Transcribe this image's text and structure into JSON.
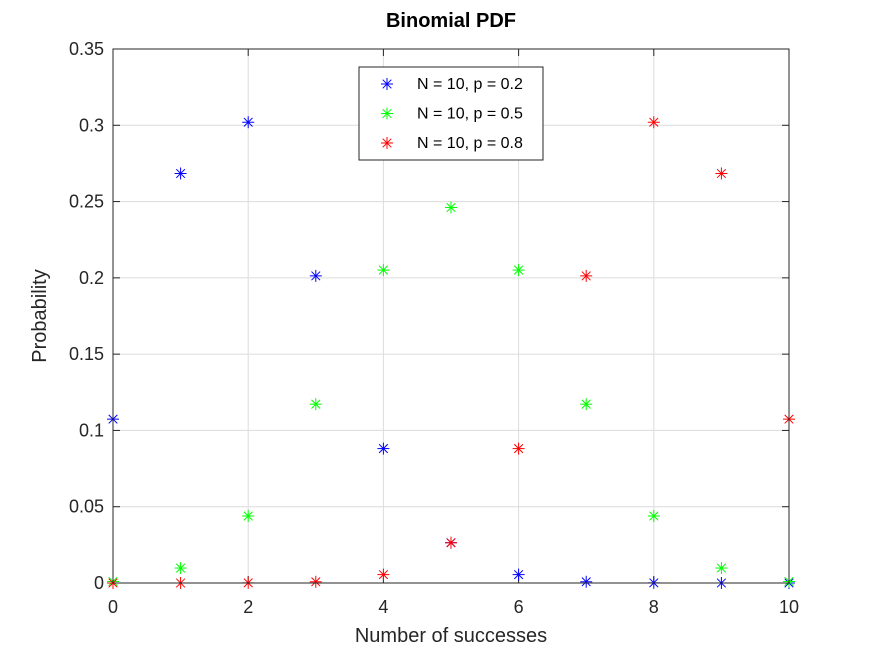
{
  "chart_data": {
    "type": "scatter",
    "title": "Binomial PDF",
    "xlabel": "Number of successes",
    "ylabel": "Probability",
    "xlim": [
      0,
      10
    ],
    "ylim": [
      0,
      0.35
    ],
    "xticks": [
      0,
      2,
      4,
      6,
      8,
      10
    ],
    "xtick_labels": [
      "0",
      "2",
      "4",
      "6",
      "8",
      "10"
    ],
    "yticks": [
      0,
      0.05,
      0.1,
      0.15,
      0.2,
      0.25,
      0.3,
      0.35
    ],
    "ytick_labels": [
      "0",
      "0.05",
      "0.1",
      "0.15",
      "0.2",
      "0.25",
      "0.3",
      "0.35"
    ],
    "grid": true,
    "legend_position": "top-center",
    "marker": "asterisk",
    "x": [
      0,
      1,
      2,
      3,
      4,
      5,
      6,
      7,
      8,
      9,
      10
    ],
    "series": [
      {
        "name": "N = 10, p = 0.2",
        "color": "#0000ff",
        "values": [
          0.1074,
          0.2684,
          0.302,
          0.2013,
          0.0881,
          0.0264,
          0.0055,
          0.0008,
          0.0001,
          0.0,
          0.0
        ]
      },
      {
        "name": "N = 10, p = 0.5",
        "color": "#00ff00",
        "values": [
          0.001,
          0.0098,
          0.0439,
          0.1172,
          0.2051,
          0.2461,
          0.2051,
          0.1172,
          0.0439,
          0.0098,
          0.001
        ]
      },
      {
        "name": "N = 10, p = 0.8",
        "color": "#ff0000",
        "values": [
          0.0,
          0.0,
          0.0001,
          0.0008,
          0.0055,
          0.0264,
          0.0881,
          0.2013,
          0.302,
          0.2684,
          0.1074
        ]
      }
    ]
  }
}
